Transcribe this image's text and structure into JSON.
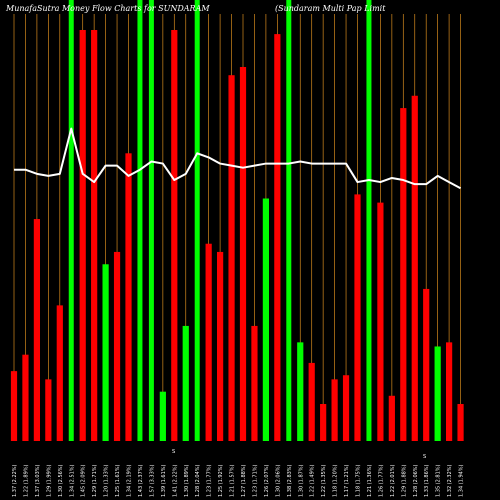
{
  "chart_data": {
    "type": "bar",
    "title_left": "MunafaSutra Money Flow Charts for SUNDARAM",
    "title_right": "(Sundaram Multi Pap Limit",
    "marker_a": "S",
    "marker_b": "S",
    "ylim": [
      0,
      100
    ],
    "grid": "vertical",
    "colors": {
      "up": "#ff0000",
      "down": "#00ff00",
      "big": "#00ff00",
      "grid": "#d58a1e",
      "line": "#ffffff"
    },
    "bars": [
      {
        "label": "1.37 (2.22%)",
        "value": 17,
        "color": "red"
      },
      {
        "label": "1.22 (1.89%)",
        "value": 21,
        "color": "red"
      },
      {
        "label": "1.37 (3.03%)",
        "value": 54,
        "color": "red"
      },
      {
        "label": "1.29 (1.99%)",
        "value": 15,
        "color": "red"
      },
      {
        "label": "1.30 (2.56%)",
        "value": 33,
        "color": "red"
      },
      {
        "label": "1.34 (2.51%)",
        "value": 100,
        "color": "big"
      },
      {
        "label": "1.45 (2.09%)",
        "value": 100,
        "color": "red"
      },
      {
        "label": "1.29 (1.71%)",
        "value": 100,
        "color": "red"
      },
      {
        "label": "1.20 (1.33%)",
        "value": 43,
        "color": "green"
      },
      {
        "label": "1.25 (1.61%)",
        "value": 46,
        "color": "red"
      },
      {
        "label": "1.34 (2.19%)",
        "value": 70,
        "color": "red"
      },
      {
        "label": "1.43 (2.37%)",
        "value": 100,
        "color": "big"
      },
      {
        "label": "1.57 (3.33%)",
        "value": 100,
        "color": "big"
      },
      {
        "label": "1.39 (1.61%)",
        "value": 12,
        "color": "green"
      },
      {
        "label": "1.41 (2.22%)",
        "value": 100,
        "color": "red"
      },
      {
        "label": "1.30 (1.89%)",
        "value": 28,
        "color": "green"
      },
      {
        "label": "1.28 (2.04%)",
        "value": 100,
        "color": "big"
      },
      {
        "label": "1.23 (1.77%)",
        "value": 48,
        "color": "red"
      },
      {
        "label": "1.25 (1.92%)",
        "value": 46,
        "color": "red"
      },
      {
        "label": "1.21 (1.57%)",
        "value": 89,
        "color": "red"
      },
      {
        "label": "1.27 (1.88%)",
        "value": 91,
        "color": "red"
      },
      {
        "label": "1.23 (1.71%)",
        "value": 28,
        "color": "red"
      },
      {
        "label": "1.26 (2.07%)",
        "value": 59,
        "color": "green"
      },
      {
        "label": "1.30 (2.06%)",
        "value": 99,
        "color": "red"
      },
      {
        "label": "1.38 (2.83%)",
        "value": 100,
        "color": "big"
      },
      {
        "label": "1.30 (1.87%)",
        "value": 24,
        "color": "green"
      },
      {
        "label": "1.22 (1.49%)",
        "value": 19,
        "color": "red"
      },
      {
        "label": "1.22 (1.35%)",
        "value": 9,
        "color": "red"
      },
      {
        "label": "1.18 (1.20%)",
        "value": 15,
        "color": "red"
      },
      {
        "label": "1.17 (1.21%)",
        "value": 16,
        "color": "red"
      },
      {
        "label": "1.18 (1.75%)",
        "value": 60,
        "color": "red"
      },
      {
        "label": "1.21 (1.36%)",
        "value": 100,
        "color": "big"
      },
      {
        "label": "1.26 (1.77%)",
        "value": 58,
        "color": "red"
      },
      {
        "label": "1.22 (2.01%)",
        "value": 11,
        "color": "red"
      },
      {
        "label": "1.29 (1.88%)",
        "value": 81,
        "color": "red"
      },
      {
        "label": "1.28 (2.06%)",
        "value": 84,
        "color": "red"
      },
      {
        "label": "1.33 (1.86%)",
        "value": 37,
        "color": "red"
      },
      {
        "label": "1.35 (2.81%)",
        "value": 23,
        "color": "green"
      },
      {
        "label": "1.32 (2.32%)",
        "value": 24,
        "color": "red"
      },
      {
        "label": "1.34 (1.94%)",
        "value": 9,
        "color": "red"
      }
    ],
    "price_line": [
      66,
      66,
      65,
      64.5,
      65,
      76,
      65,
      63,
      67,
      67,
      64.5,
      66,
      68,
      67.5,
      63.5,
      65,
      70,
      69,
      67.5,
      67,
      66.5,
      67,
      67.5,
      67.5,
      67.5,
      68,
      67.5,
      67.5,
      67.5,
      67.5,
      63,
      63.5,
      63,
      64,
      63.5,
      62.5,
      62.5,
      64.5,
      63,
      61.5
    ]
  }
}
